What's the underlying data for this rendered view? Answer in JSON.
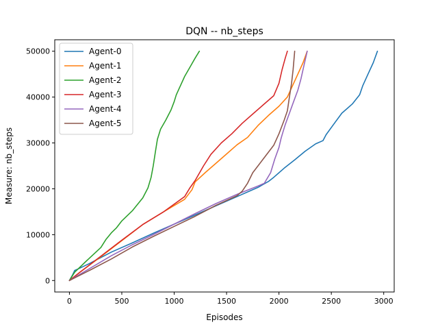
{
  "chart_data": {
    "type": "line",
    "title": "DQN -- nb_steps",
    "xlabel": "Episodes",
    "ylabel": "Measure: nb_steps",
    "xlim": [
      -140,
      3100
    ],
    "ylim": [
      -2500,
      52500
    ],
    "x_ticks": [
      0,
      500,
      1000,
      1500,
      2000,
      2500,
      3000
    ],
    "y_ticks": [
      0,
      10000,
      20000,
      30000,
      40000,
      50000
    ],
    "grid": false,
    "legend_position": "top-left",
    "series": [
      {
        "name": "Agent-0",
        "color": "#1f77b4",
        "points": [
          [
            0,
            0
          ],
          [
            30,
            1200
          ],
          [
            50,
            2200
          ],
          [
            100,
            2700
          ],
          [
            200,
            3800
          ],
          [
            400,
            6200
          ],
          [
            600,
            8200
          ],
          [
            800,
            10300
          ],
          [
            1000,
            12300
          ],
          [
            1200,
            14300
          ],
          [
            1400,
            16300
          ],
          [
            1600,
            18300
          ],
          [
            1800,
            20300
          ],
          [
            1900,
            21600
          ],
          [
            1950,
            22500
          ],
          [
            2050,
            24500
          ],
          [
            2150,
            26300
          ],
          [
            2250,
            28200
          ],
          [
            2350,
            29800
          ],
          [
            2420,
            30500
          ],
          [
            2450,
            31800
          ],
          [
            2520,
            34000
          ],
          [
            2600,
            36500
          ],
          [
            2700,
            38500
          ],
          [
            2770,
            40500
          ],
          [
            2800,
            42500
          ],
          [
            2850,
            45000
          ],
          [
            2900,
            47500
          ],
          [
            2940,
            50000
          ]
        ]
      },
      {
        "name": "Agent-1",
        "color": "#ff7f0e",
        "points": [
          [
            0,
            0
          ],
          [
            100,
            1800
          ],
          [
            300,
            5200
          ],
          [
            500,
            8700
          ],
          [
            700,
            12200
          ],
          [
            900,
            15000
          ],
          [
            1100,
            17700
          ],
          [
            1170,
            19800
          ],
          [
            1200,
            21500
          ],
          [
            1300,
            23600
          ],
          [
            1400,
            25600
          ],
          [
            1500,
            27600
          ],
          [
            1600,
            29600
          ],
          [
            1700,
            31200
          ],
          [
            1800,
            33800
          ],
          [
            1900,
            36000
          ],
          [
            2000,
            38000
          ],
          [
            2080,
            40000
          ],
          [
            2130,
            42500
          ],
          [
            2180,
            45000
          ],
          [
            2230,
            47500
          ],
          [
            2270,
            50000
          ]
        ]
      },
      {
        "name": "Agent-2",
        "color": "#2ca02c",
        "points": [
          [
            0,
            0
          ],
          [
            50,
            1800
          ],
          [
            150,
            4000
          ],
          [
            300,
            7200
          ],
          [
            350,
            9000
          ],
          [
            400,
            10400
          ],
          [
            450,
            11500
          ],
          [
            500,
            13000
          ],
          [
            600,
            15200
          ],
          [
            700,
            18000
          ],
          [
            750,
            20200
          ],
          [
            780,
            22500
          ],
          [
            800,
            25000
          ],
          [
            820,
            28000
          ],
          [
            840,
            30800
          ],
          [
            870,
            33000
          ],
          [
            920,
            35000
          ],
          [
            970,
            37200
          ],
          [
            1000,
            39000
          ],
          [
            1020,
            40500
          ],
          [
            1060,
            42500
          ],
          [
            1100,
            44500
          ],
          [
            1150,
            46500
          ],
          [
            1200,
            48500
          ],
          [
            1240,
            50000
          ]
        ]
      },
      {
        "name": "Agent-3",
        "color": "#d62728",
        "points": [
          [
            0,
            0
          ],
          [
            100,
            1800
          ],
          [
            300,
            5300
          ],
          [
            500,
            8800
          ],
          [
            700,
            12200
          ],
          [
            900,
            15000
          ],
          [
            1100,
            18300
          ],
          [
            1150,
            20200
          ],
          [
            1200,
            21800
          ],
          [
            1280,
            25000
          ],
          [
            1350,
            27500
          ],
          [
            1450,
            30000
          ],
          [
            1550,
            32000
          ],
          [
            1650,
            34300
          ],
          [
            1750,
            36300
          ],
          [
            1850,
            38300
          ],
          [
            1950,
            40300
          ],
          [
            2000,
            43000
          ],
          [
            2030,
            46000
          ],
          [
            2060,
            48500
          ],
          [
            2080,
            50000
          ]
        ]
      },
      {
        "name": "Agent-4",
        "color": "#9467bd",
        "points": [
          [
            0,
            0
          ],
          [
            200,
            2700
          ],
          [
            400,
            5400
          ],
          [
            600,
            7800
          ],
          [
            800,
            10000
          ],
          [
            1000,
            12300
          ],
          [
            1200,
            14600
          ],
          [
            1400,
            16800
          ],
          [
            1600,
            18800
          ],
          [
            1800,
            20600
          ],
          [
            1860,
            21200
          ],
          [
            1920,
            23500
          ],
          [
            1960,
            26500
          ],
          [
            2000,
            29000
          ],
          [
            2020,
            31000
          ],
          [
            2040,
            32500
          ],
          [
            2060,
            34000
          ],
          [
            2100,
            36500
          ],
          [
            2140,
            39000
          ],
          [
            2180,
            41500
          ],
          [
            2210,
            44000
          ],
          [
            2240,
            47000
          ],
          [
            2270,
            50000
          ]
        ]
      },
      {
        "name": "Agent-5",
        "color": "#8c564b",
        "points": [
          [
            0,
            0
          ],
          [
            200,
            2300
          ],
          [
            400,
            4700
          ],
          [
            600,
            7300
          ],
          [
            800,
            9600
          ],
          [
            1000,
            11800
          ],
          [
            1200,
            14000
          ],
          [
            1400,
            16400
          ],
          [
            1600,
            18500
          ],
          [
            1650,
            19500
          ],
          [
            1700,
            21200
          ],
          [
            1750,
            23500
          ],
          [
            1850,
            26500
          ],
          [
            1950,
            29500
          ],
          [
            2000,
            32000
          ],
          [
            2050,
            35000
          ],
          [
            2080,
            37000
          ],
          [
            2100,
            40000
          ],
          [
            2120,
            43000
          ],
          [
            2135,
            46000
          ],
          [
            2150,
            50000
          ]
        ]
      }
    ]
  }
}
